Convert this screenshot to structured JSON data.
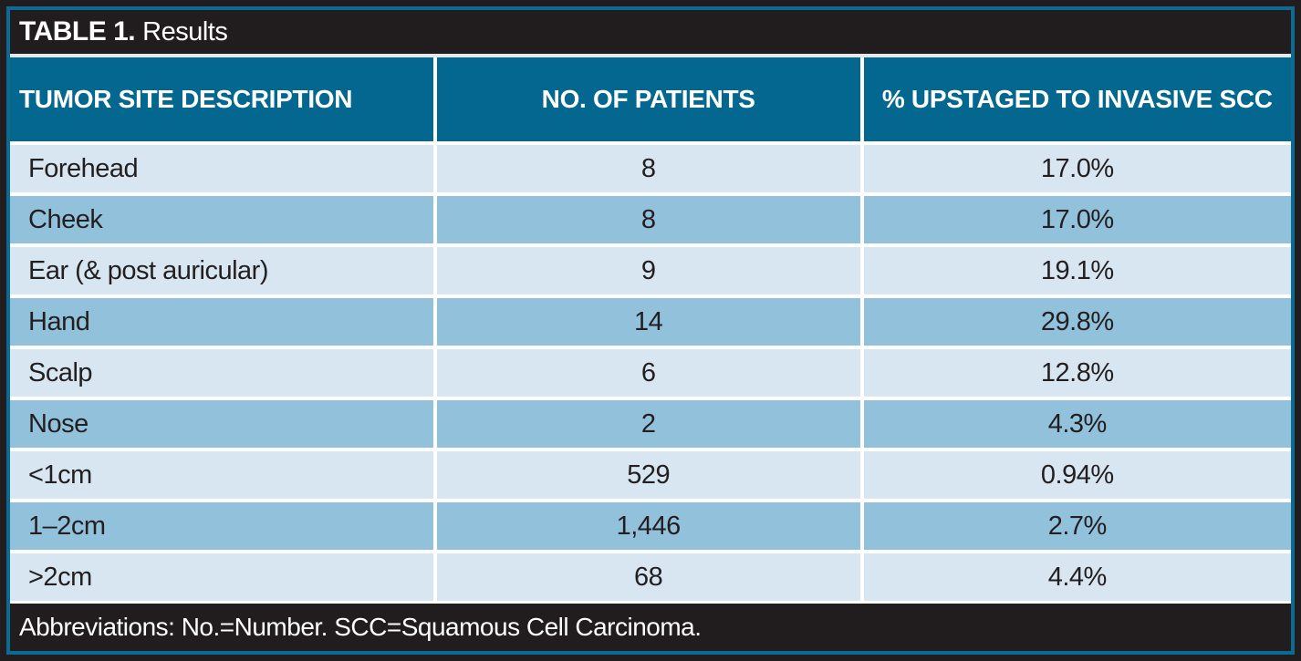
{
  "table": {
    "title_label": "TABLE 1.",
    "title_text": "Results",
    "columns": [
      "TUMOR SITE DESCRIPTION",
      "NO. OF PATIENTS",
      "% UPSTAGED TO INVASIVE SCC"
    ],
    "rows": [
      {
        "site": "Forehead",
        "patients": "8",
        "upstaged": "17.0%"
      },
      {
        "site": "Cheek",
        "patients": "8",
        "upstaged": "17.0%"
      },
      {
        "site": "Ear (& post auricular)",
        "patients": "9",
        "upstaged": "19.1%"
      },
      {
        "site": "Hand",
        "patients": "14",
        "upstaged": "29.8%"
      },
      {
        "site": "Scalp",
        "patients": "6",
        "upstaged": "12.8%"
      },
      {
        "site": "Nose",
        "patients": "2",
        "upstaged": "4.3%"
      },
      {
        "site": "<1cm",
        "patients": "529",
        "upstaged": "0.94%"
      },
      {
        "site": "1–2cm",
        "patients": "1,446",
        "upstaged": "2.7%"
      },
      {
        "site": ">2cm",
        "patients": "68",
        "upstaged": "4.4%"
      }
    ],
    "footnote": "Abbreviations: No.=Number. SCC=Squamous Cell Carcinoma.",
    "colors": {
      "header_teal": "#04678f",
      "row_light": "#d8e6f1",
      "row_medium": "#92c1db",
      "bar_black": "#211d1e",
      "frame_teal": "#0a6c95",
      "text_dark": "#231f20"
    }
  }
}
